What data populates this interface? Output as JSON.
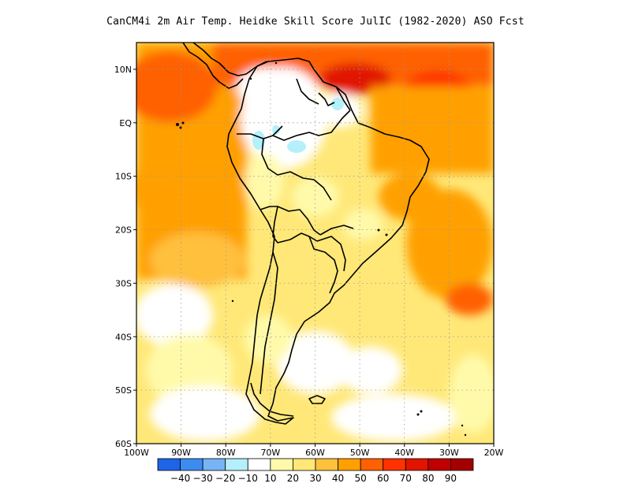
{
  "title": "CanCM4i  2m Air Temp. Heidke Skill Score JulIC (1982-2020) ASO Fcst",
  "map": {
    "region": "South America",
    "lon_range": [
      -100,
      -20
    ],
    "lat_range": [
      -60,
      15
    ],
    "lon_ticks": [
      "100W",
      "90W",
      "80W",
      "70W",
      "60W",
      "50W",
      "40W",
      "30W",
      "20W"
    ],
    "lat_ticks": [
      "10N",
      "EQ",
      "10S",
      "20S",
      "30S",
      "40S",
      "50S",
      "60S"
    ],
    "grid": "dotted"
  },
  "colorbar": {
    "labels": [
      "-40",
      "-30",
      "-20",
      "-10",
      "10",
      "20",
      "30",
      "40",
      "50",
      "60",
      "70",
      "80",
      "90"
    ],
    "colors": [
      "#1e64e6",
      "#3c8cf0",
      "#78b4f5",
      "#b4f0fa",
      "#ffffff",
      "#fffaaa",
      "#ffe878",
      "#ffc03c",
      "#ffa000",
      "#ff6000",
      "#ff3200",
      "#e11400",
      "#c00000",
      "#a50000"
    ]
  }
}
